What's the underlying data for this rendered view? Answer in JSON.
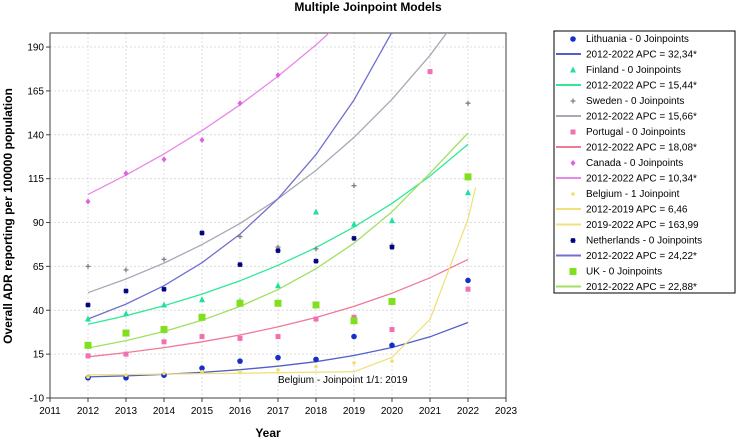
{
  "chart_data": {
    "type": "scatter",
    "title": "Multiple Joinpoint Models",
    "xlabel": "Year",
    "ylabel": "Overall ADR reporting per 100000 population",
    "xlim": [
      2011,
      2023
    ],
    "ylim": [
      -10,
      198
    ],
    "xticks": [
      2011,
      2012,
      2013,
      2014,
      2015,
      2016,
      2017,
      2018,
      2019,
      2020,
      2021,
      2022,
      2023
    ],
    "yticks": [
      -10,
      15,
      40,
      65,
      90,
      115,
      140,
      165,
      190
    ],
    "grid": true,
    "legend_position": "right",
    "annotation": "Belgium - Joinpoint 1/1:  2019",
    "series": [
      {
        "name": "Lithuania - 0 Joinpoints",
        "fit_label": "2012-2022 APC  = 32,34*",
        "marker": "circle",
        "color": "#1530c8",
        "line_color": "#5060c8",
        "x": [
          2012,
          2013,
          2014,
          2015,
          2016,
          2017,
          2018,
          2019,
          2020,
          2022
        ],
        "y": [
          1.5,
          1.5,
          3,
          7,
          11,
          13,
          12,
          25,
          20,
          57
        ],
        "fit": [
          [
            2012,
            2.0
          ],
          [
            2013,
            2.6
          ],
          [
            2014,
            3.5
          ],
          [
            2015,
            4.6
          ],
          [
            2016,
            6.1
          ],
          [
            2017,
            8.1
          ],
          [
            2018,
            10.7
          ],
          [
            2019,
            14.2
          ],
          [
            2020,
            18.8
          ],
          [
            2021,
            24.9
          ],
          [
            2022,
            33.0
          ]
        ]
      },
      {
        "name": "Finland - 0 Joinpoints",
        "fit_label": "2012-2022 APC  = 15,44*",
        "marker": "triangle",
        "color": "#20e0a0",
        "line_color": "#30e898",
        "x": [
          2012,
          2013,
          2014,
          2015,
          2016,
          2017,
          2018,
          2019,
          2020,
          2022
        ],
        "y": [
          35,
          38,
          43,
          46,
          45,
          54,
          96,
          89,
          91,
          107
        ],
        "fit": [
          [
            2012,
            32.0
          ],
          [
            2013,
            36.9
          ],
          [
            2014,
            42.6
          ],
          [
            2015,
            49.2
          ],
          [
            2016,
            56.8
          ],
          [
            2017,
            65.6
          ],
          [
            2018,
            75.7
          ],
          [
            2019,
            87.4
          ],
          [
            2020,
            100.9
          ],
          [
            2021,
            116.5
          ],
          [
            2022,
            134.5
          ]
        ]
      },
      {
        "name": "Sweden - 0 Joinpoints",
        "fit_label": "2012-2022 APC  = 15,66*",
        "marker": "plus",
        "color": "#808080",
        "line_color": "#a8a8b8",
        "x": [
          2012,
          2013,
          2014,
          2015,
          2016,
          2017,
          2018,
          2019,
          2020,
          2022
        ],
        "y": [
          65,
          63,
          69,
          84,
          82,
          76,
          75,
          111,
          77,
          158
        ],
        "fit": [
          [
            2012,
            50.0
          ],
          [
            2013,
            57.8
          ],
          [
            2014,
            66.9
          ],
          [
            2015,
            77.4
          ],
          [
            2016,
            89.5
          ],
          [
            2017,
            103.5
          ],
          [
            2018,
            119.7
          ],
          [
            2019,
            138.5
          ],
          [
            2020,
            160.2
          ],
          [
            2021,
            185.3
          ],
          [
            2022,
            214.3
          ]
        ]
      },
      {
        "name": "Portugal - 0 Joinpoints",
        "fit_label": "2012-2022 APC  = 18,08*",
        "marker": "square",
        "color": "#f070b0",
        "line_color": "#f07898",
        "x": [
          2012,
          2013,
          2014,
          2015,
          2016,
          2017,
          2018,
          2019,
          2020,
          2021,
          2022
        ],
        "y": [
          14,
          15,
          22,
          25,
          24,
          25,
          35,
          36,
          29,
          176,
          52
        ],
        "fit": [
          [
            2012,
            13.5
          ],
          [
            2013,
            15.9
          ],
          [
            2014,
            18.7
          ],
          [
            2015,
            22.0
          ],
          [
            2016,
            25.9
          ],
          [
            2017,
            30.5
          ],
          [
            2018,
            35.9
          ],
          [
            2019,
            42.2
          ],
          [
            2020,
            49.7
          ],
          [
            2021,
            58.5
          ],
          [
            2022,
            69.0
          ]
        ]
      },
      {
        "name": "Canada - 0 Joinpoints",
        "fit_label": "2012-2022 APC  = 10,34*",
        "marker": "diamond",
        "color": "#e060e0",
        "line_color": "#e888e8",
        "x": [
          2012,
          2013,
          2014,
          2015,
          2016,
          2017
        ],
        "y": [
          102,
          118,
          126,
          137,
          158,
          174
        ],
        "fit": [
          [
            2012,
            106.0
          ],
          [
            2013,
            117.0
          ],
          [
            2014,
            129.1
          ],
          [
            2015,
            142.4
          ],
          [
            2016,
            157.1
          ],
          [
            2017,
            173.3
          ],
          [
            2018,
            191.2
          ],
          [
            2019,
            211.0
          ]
        ]
      },
      {
        "name": "Belgium - 1 Joinpoint",
        "fit_label": "2012-2019 APC  =   6,46",
        "fit_label_2": "2019-2022 APC  = 163,99",
        "marker": "dot",
        "color": "#f0e070",
        "line_color": "#f0e080",
        "x": [
          2012,
          2013,
          2014,
          2015,
          2016,
          2017,
          2018,
          2019,
          2020,
          2022
        ],
        "y": [
          2,
          3,
          4,
          5,
          5,
          6,
          8,
          10,
          11,
          116
        ],
        "fit": [
          [
            2012,
            3.2
          ],
          [
            2013,
            3.4
          ],
          [
            2014,
            3.6
          ],
          [
            2015,
            3.9
          ],
          [
            2016,
            4.1
          ],
          [
            2017,
            4.4
          ],
          [
            2018,
            4.7
          ],
          [
            2019,
            5.0
          ],
          [
            2020,
            13.2
          ],
          [
            2021,
            34.8
          ],
          [
            2022,
            91.9
          ],
          [
            2022.2,
            110.0
          ]
        ]
      },
      {
        "name": "Netherlands - 0 Joinpoints",
        "fit_label": "2012-2022 APC  = 24,22*",
        "marker": "star",
        "color": "#000080",
        "line_color": "#7070d0",
        "x": [
          2012,
          2013,
          2014,
          2015,
          2016,
          2017,
          2018,
          2019,
          2020
        ],
        "y": [
          43,
          51,
          52,
          84,
          66,
          74,
          68,
          81,
          76
        ],
        "fit": [
          [
            2012,
            35.0
          ],
          [
            2013,
            43.5
          ],
          [
            2014,
            54.0
          ],
          [
            2015,
            67.1
          ],
          [
            2016,
            83.4
          ],
          [
            2017,
            103.6
          ],
          [
            2018,
            128.7
          ],
          [
            2019,
            159.8
          ],
          [
            2020,
            198.5
          ],
          [
            2021,
            246.6
          ]
        ]
      },
      {
        "name": "UK - 0 Joinpoints",
        "fit_label": "2012-2022 APC  = 22,88*",
        "marker": "bigsquare",
        "color": "#80e020",
        "line_color": "#a0e060",
        "x": [
          2012,
          2013,
          2014,
          2015,
          2016,
          2017,
          2018,
          2019,
          2020,
          2022
        ],
        "y": [
          20,
          27,
          29,
          36,
          44,
          44,
          43,
          34,
          45,
          116
        ],
        "fit": [
          [
            2012,
            18.5
          ],
          [
            2013,
            22.7
          ],
          [
            2014,
            27.9
          ],
          [
            2015,
            34.3
          ],
          [
            2016,
            42.2
          ],
          [
            2017,
            51.8
          ],
          [
            2018,
            63.7
          ],
          [
            2019,
            78.2
          ],
          [
            2020,
            96.1
          ],
          [
            2021,
            118.1
          ],
          [
            2022,
            141.0
          ]
        ]
      }
    ]
  }
}
